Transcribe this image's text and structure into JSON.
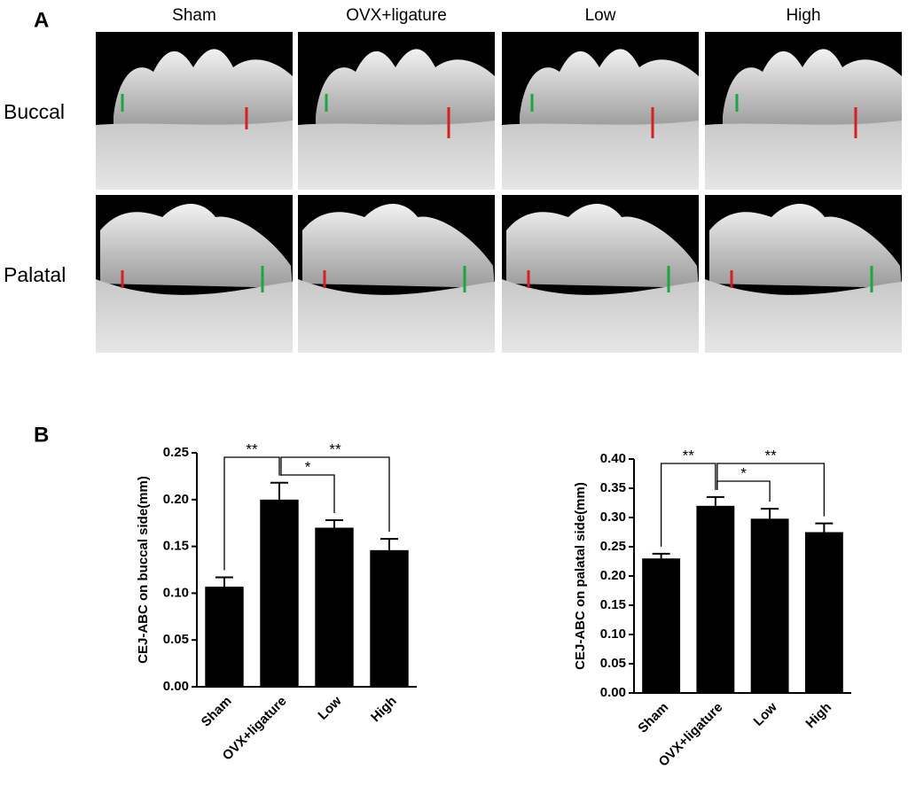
{
  "panel_labels": [
    "A",
    "B"
  ],
  "panel_a": {
    "columns": [
      "Sham",
      "OVX+ligature",
      "Low",
      "High"
    ],
    "rows": [
      "Buccal",
      "Palatal"
    ]
  },
  "chart_data": [
    {
      "type": "bar",
      "ylabel": "CEJ-ABC on buccal side(mm)",
      "categories": [
        "Sham",
        "OVX+ligature",
        "Low",
        "High"
      ],
      "values": [
        0.107,
        0.2,
        0.17,
        0.146
      ],
      "errors": [
        0.01,
        0.018,
        0.008,
        0.012
      ],
      "color": "#000000",
      "ylim": [
        0,
        0.25
      ],
      "yticks": [
        {
          "value": 0,
          "label": "0.00"
        },
        0.05,
        {
          "value": 0.1,
          "label": "0.10"
        },
        0.15,
        {
          "value": 0.2,
          "label": "0.20"
        },
        0.25
      ],
      "significance": [
        {
          "label": "**",
          "pair": [
            0,
            1
          ]
        },
        {
          "label": "*",
          "pair": [
            1,
            2
          ]
        },
        {
          "label": "**",
          "pair": [
            1,
            3
          ]
        }
      ]
    },
    {
      "type": "bar",
      "ylabel": "CEJ-ABC on palatal side(mm)",
      "categories": [
        "Sham",
        "OVX+ligature",
        "Low",
        "High"
      ],
      "values": [
        0.23,
        0.32,
        0.298,
        0.275
      ],
      "errors": [
        0.008,
        0.015,
        0.017,
        0.015
      ],
      "color": "#000000",
      "ylim": [
        0,
        0.4
      ],
      "yticks": [
        {
          "value": 0,
          "label": "0.00"
        },
        0.05,
        {
          "value": 0.1,
          "label": "0.10"
        },
        0.15,
        {
          "value": 0.2,
          "label": "0.20"
        },
        0.25,
        {
          "value": 0.3,
          "label": "0.30"
        },
        0.35,
        {
          "value": 0.4,
          "label": "0.40"
        }
      ],
      "significance": [
        {
          "label": "**",
          "pair": [
            0,
            1
          ]
        },
        {
          "label": "*",
          "pair": [
            1,
            2
          ]
        },
        {
          "label": "**",
          "pair": [
            1,
            3
          ]
        }
      ]
    }
  ]
}
